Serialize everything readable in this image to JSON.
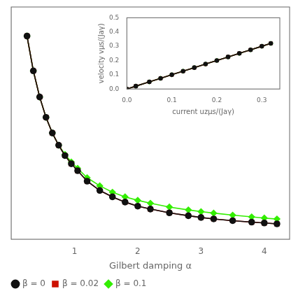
{
  "chart_data": [
    {
      "type": "line",
      "xlabel": "Gilbert damping α",
      "x": [
        0.25,
        0.35,
        0.45,
        0.55,
        0.65,
        0.75,
        0.85,
        0.95,
        1.05,
        1.2,
        1.4,
        1.6,
        1.8,
        2.0,
        2.2,
        2.5,
        2.8,
        3.0,
        3.2,
        3.5,
        3.8,
        4.0,
        4.2
      ],
      "series": [
        {
          "name": "β = 0",
          "color": "#111111",
          "marker": "circle",
          "line_style": "solid",
          "values": [
            3.5,
            2.9,
            2.45,
            2.1,
            1.83,
            1.62,
            1.44,
            1.3,
            1.18,
            1.0,
            0.84,
            0.73,
            0.64,
            0.57,
            0.52,
            0.455,
            0.405,
            0.375,
            0.35,
            0.32,
            0.295,
            0.28,
            0.265
          ]
        },
        {
          "name": "β = 0.02",
          "color": "#cc1100",
          "marker": "square",
          "line_style": "solid",
          "values": [
            3.5,
            2.9,
            2.45,
            2.1,
            1.83,
            1.62,
            1.44,
            1.3,
            1.18,
            1.0,
            0.84,
            0.73,
            0.64,
            0.57,
            0.52,
            0.455,
            0.405,
            0.375,
            0.35,
            0.32,
            0.295,
            0.28,
            0.265
          ]
        },
        {
          "name": "β = 0.1",
          "color": "#33ee00",
          "marker": "diamond",
          "line_style": "solid",
          "values": [
            3.5,
            2.9,
            2.45,
            2.1,
            1.83,
            1.62,
            1.46,
            1.33,
            1.22,
            1.06,
            0.92,
            0.81,
            0.73,
            0.67,
            0.62,
            0.555,
            0.505,
            0.475,
            0.45,
            0.415,
            0.385,
            0.365,
            0.348
          ]
        }
      ],
      "xlim": [
        0.0,
        4.4
      ],
      "ylim": [
        0.0,
        4.0
      ],
      "xticks": [
        1,
        2,
        3,
        4
      ],
      "yticks": [],
      "tick_labels": "x",
      "grid": false,
      "legend": "lower left"
    },
    {
      "type": "line",
      "xlabel": "current uzμs/(Jaγ)",
      "ylabel": "velocity vμs/(Jaγ)",
      "x": [
        0.0,
        0.02,
        0.05,
        0.075,
        0.1,
        0.125,
        0.15,
        0.175,
        0.2,
        0.225,
        0.25,
        0.275,
        0.3,
        0.32
      ],
      "series": [
        {
          "color": "#111111",
          "marker": "circle",
          "line_style": "solid",
          "values": [
            0.0,
            0.02,
            0.05,
            0.075,
            0.1,
            0.125,
            0.15,
            0.175,
            0.2,
            0.225,
            0.25,
            0.275,
            0.3,
            0.32
          ]
        },
        {
          "color": "#cc1100",
          "marker": "square",
          "line_style": "solid",
          "values": [
            0.0,
            0.02,
            0.05,
            0.075,
            0.1,
            0.125,
            0.15,
            0.175,
            0.2,
            0.225,
            0.25,
            0.275,
            0.3,
            0.32
          ]
        },
        {
          "color": "#33ee00",
          "marker": "diamond",
          "line_style": "solid",
          "values": [
            0.0,
            0.02,
            0.05,
            0.075,
            0.1,
            0.125,
            0.15,
            0.175,
            0.2,
            0.225,
            0.25,
            0.275,
            0.3,
            0.32
          ]
        }
      ],
      "xlim": [
        0.0,
        0.34
      ],
      "ylim": [
        0.0,
        0.5
      ],
      "xticks": [
        {
          "value": 0.0,
          "label": "0.0"
        },
        {
          "value": 0.1,
          "label": "0.1"
        },
        {
          "value": 0.2,
          "label": "0.2"
        },
        {
          "value": 0.3,
          "label": "0.3"
        }
      ],
      "yticks": [
        {
          "value": 0.0,
          "label": "0.0"
        },
        {
          "value": 0.1,
          "label": "0.1"
        },
        {
          "value": 0.2,
          "label": "0.2"
        },
        {
          "value": 0.3,
          "label": "0.3"
        },
        {
          "value": 0.4,
          "label": "0.4"
        },
        {
          "value": 0.5,
          "label": "0.5"
        }
      ],
      "grid": false
    }
  ]
}
